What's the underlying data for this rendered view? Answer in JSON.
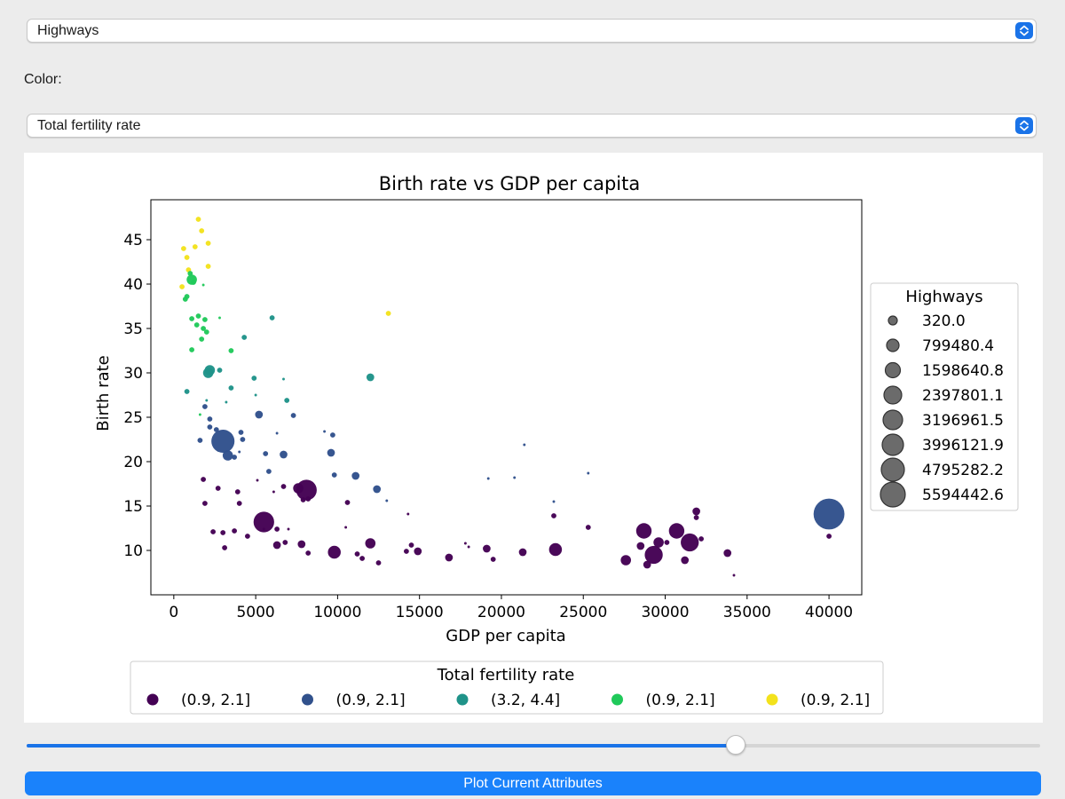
{
  "size_select": {
    "value": "Highways"
  },
  "color_label": "Color:",
  "color_select": {
    "value": "Total fertility rate"
  },
  "slider": {
    "fraction": 0.7
  },
  "plot_button_label": "Plot Current Attributes",
  "colors": {
    "accent": "#1a73e8",
    "button": "#1a82fb"
  },
  "chart_data": {
    "type": "scatter",
    "title": "Birth rate vs GDP per capita",
    "xlabel": "GDP per capita",
    "ylabel": "Birth rate",
    "xlim": [
      -1400,
      42000
    ],
    "ylim": [
      5,
      49.5
    ],
    "xticks": [
      0,
      5000,
      10000,
      15000,
      20000,
      25000,
      30000,
      35000,
      40000
    ],
    "yticks": [
      10,
      15,
      20,
      25,
      30,
      35,
      40,
      45
    ],
    "size_legend": {
      "title": "Highways",
      "entries": [
        "320.0",
        "799480.4",
        "1598640.8",
        "2397801.1",
        "3196961.5",
        "3996121.9",
        "4795282.2",
        "5594442.6"
      ]
    },
    "color_legend": {
      "title": "Total fertility rate",
      "entries": [
        {
          "label": "(0.9, 2.1]",
          "color": "#440154"
        },
        {
          "label": "(0.9, 2.1]",
          "color": "#31518c"
        },
        {
          "label": "(3.2, 4.4]",
          "color": "#1f9389"
        },
        {
          "label": "(0.9, 2.1]",
          "color": "#20c95a"
        },
        {
          "label": "(0.9, 2.1]",
          "color": "#f3e21c"
        }
      ]
    },
    "points": [
      [
        1500,
        47.3,
        2,
        4
      ],
      [
        1700,
        46.0,
        2,
        4
      ],
      [
        600,
        44.0,
        2,
        4
      ],
      [
        1300,
        44.2,
        2,
        4
      ],
      [
        2100,
        44.6,
        2,
        4
      ],
      [
        800,
        43.0,
        2,
        4
      ],
      [
        2100,
        42.0,
        2,
        4
      ],
      [
        900,
        41.6,
        2,
        4
      ],
      [
        500,
        39.7,
        2,
        4
      ],
      [
        13100,
        36.7,
        2,
        4
      ],
      [
        1000,
        41.2,
        2,
        3
      ],
      [
        1100,
        40.5,
        4,
        3
      ],
      [
        1200,
        40.2,
        2,
        3
      ],
      [
        700,
        38.3,
        2,
        3
      ],
      [
        800,
        38.6,
        2,
        3
      ],
      [
        1500,
        36.4,
        2,
        3
      ],
      [
        1100,
        36.1,
        2,
        3
      ],
      [
        1900,
        36.0,
        2,
        3
      ],
      [
        1400,
        35.4,
        2,
        3
      ],
      [
        1800,
        35.0,
        2,
        3
      ],
      [
        2000,
        34.6,
        2,
        3
      ],
      [
        1700,
        33.8,
        2,
        3
      ],
      [
        1100,
        32.6,
        2,
        3
      ],
      [
        2800,
        36.2,
        1,
        3
      ],
      [
        3500,
        32.5,
        2,
        3
      ],
      [
        1800,
        39.9,
        1,
        3
      ],
      [
        1600,
        25.3,
        1,
        3
      ],
      [
        6000,
        36.2,
        2,
        2
      ],
      [
        4300,
        34.0,
        2,
        2
      ],
      [
        2200,
        30.3,
        4,
        2
      ],
      [
        2100,
        30.0,
        4,
        2
      ],
      [
        2800,
        30.3,
        2,
        2
      ],
      [
        3500,
        28.3,
        2,
        2
      ],
      [
        4900,
        29.4,
        2,
        2
      ],
      [
        6700,
        29.3,
        1,
        2
      ],
      [
        12000,
        29.5,
        3,
        2
      ],
      [
        5000,
        27.5,
        1,
        2
      ],
      [
        6900,
        26.9,
        2,
        2
      ],
      [
        3200,
        26.7,
        1,
        2
      ],
      [
        800,
        27.9,
        2,
        2
      ],
      [
        2000,
        26.9,
        1,
        2
      ],
      [
        1900,
        26.2,
        2,
        1
      ],
      [
        2200,
        24.8,
        2,
        1
      ],
      [
        2200,
        23.9,
        2,
        1
      ],
      [
        2600,
        23.6,
        2,
        1
      ],
      [
        4100,
        23.3,
        2,
        1
      ],
      [
        4200,
        22.5,
        2,
        1
      ],
      [
        3000,
        22.3,
        9,
        1
      ],
      [
        3300,
        20.7,
        4,
        1
      ],
      [
        3700,
        20.5,
        2,
        1
      ],
      [
        5200,
        25.3,
        3,
        1
      ],
      [
        7300,
        25.2,
        2,
        1
      ],
      [
        5600,
        20.9,
        2,
        1
      ],
      [
        6700,
        20.8,
        3,
        1
      ],
      [
        5800,
        18.9,
        2,
        1
      ],
      [
        6300,
        23.2,
        1,
        1
      ],
      [
        9700,
        23.0,
        2,
        1
      ],
      [
        9200,
        23.4,
        1,
        1
      ],
      [
        9600,
        21.0,
        3,
        1
      ],
      [
        11100,
        18.4,
        3,
        1
      ],
      [
        12400,
        16.9,
        3,
        1
      ],
      [
        13000,
        15.6,
        1,
        1
      ],
      [
        19200,
        18.1,
        1,
        1
      ],
      [
        20800,
        18.2,
        1,
        1
      ],
      [
        21400,
        21.9,
        1,
        1
      ],
      [
        25300,
        18.7,
        1,
        1
      ],
      [
        23200,
        15.5,
        1,
        1
      ],
      [
        40000,
        14.1,
        12,
        1
      ],
      [
        1600,
        22.4,
        2,
        1
      ],
      [
        9800,
        18.5,
        2,
        1
      ],
      [
        4000,
        21.1,
        1,
        1
      ],
      [
        1900,
        15.3,
        2,
        0
      ],
      [
        1800,
        18.0,
        2,
        0
      ],
      [
        2700,
        17.0,
        2,
        0
      ],
      [
        3900,
        16.6,
        2,
        0
      ],
      [
        4000,
        15.3,
        2,
        0
      ],
      [
        3700,
        12.2,
        2,
        0
      ],
      [
        5100,
        17.9,
        1,
        0
      ],
      [
        5500,
        13.2,
        8,
        0
      ],
      [
        6700,
        17.2,
        2,
        0
      ],
      [
        7600,
        17.0,
        4,
        0
      ],
      [
        8100,
        16.8,
        8,
        0
      ],
      [
        7900,
        15.7,
        2,
        0
      ],
      [
        8200,
        15.8,
        2,
        0
      ],
      [
        6100,
        16.6,
        1,
        0
      ],
      [
        2400,
        12.1,
        2,
        0
      ],
      [
        3000,
        12.0,
        2,
        0
      ],
      [
        3100,
        10.3,
        2,
        0
      ],
      [
        4500,
        11.6,
        2,
        0
      ],
      [
        5500,
        12.4,
        1,
        0
      ],
      [
        6300,
        12.4,
        2,
        0
      ],
      [
        7000,
        12.4,
        1,
        0
      ],
      [
        6300,
        10.6,
        3,
        0
      ],
      [
        6800,
        10.9,
        2,
        0
      ],
      [
        7800,
        10.7,
        3,
        0
      ],
      [
        8200,
        9.7,
        2,
        0
      ],
      [
        9800,
        9.8,
        5,
        0
      ],
      [
        10600,
        15.4,
        2,
        0
      ],
      [
        10500,
        12.6,
        1,
        0
      ],
      [
        11200,
        9.6,
        2,
        0
      ],
      [
        11500,
        9.1,
        2,
        0
      ],
      [
        12000,
        10.8,
        4,
        0
      ],
      [
        12500,
        8.6,
        2,
        0
      ],
      [
        14300,
        14.1,
        1,
        0
      ],
      [
        14500,
        10.6,
        2,
        0
      ],
      [
        14200,
        9.9,
        2,
        0
      ],
      [
        14900,
        9.9,
        3,
        0
      ],
      [
        16800,
        9.2,
        3,
        0
      ],
      [
        17800,
        10.8,
        1,
        0
      ],
      [
        18000,
        10.4,
        1,
        0
      ],
      [
        19100,
        10.2,
        3,
        0
      ],
      [
        19500,
        9.0,
        2,
        0
      ],
      [
        21300,
        9.8,
        3,
        0
      ],
      [
        23300,
        10.1,
        5,
        0
      ],
      [
        23200,
        13.9,
        2,
        0
      ],
      [
        25300,
        12.6,
        2,
        0
      ],
      [
        27600,
        8.9,
        4,
        0
      ],
      [
        28700,
        12.2,
        6,
        0
      ],
      [
        28500,
        10.5,
        3,
        0
      ],
      [
        28900,
        8.4,
        3,
        0
      ],
      [
        29300,
        9.5,
        7,
        0
      ],
      [
        29600,
        10.9,
        4,
        0
      ],
      [
        30700,
        12.2,
        6,
        0
      ],
      [
        30100,
        10.9,
        2,
        0
      ],
      [
        31200,
        8.9,
        3,
        0
      ],
      [
        31500,
        10.9,
        7,
        0
      ],
      [
        31900,
        14.4,
        3,
        0
      ],
      [
        32200,
        11.3,
        2,
        0
      ],
      [
        31900,
        13.7,
        2,
        0
      ],
      [
        33800,
        9.7,
        3,
        0
      ],
      [
        34200,
        7.2,
        1,
        0
      ],
      [
        40000,
        11.6,
        2,
        0
      ]
    ]
  }
}
